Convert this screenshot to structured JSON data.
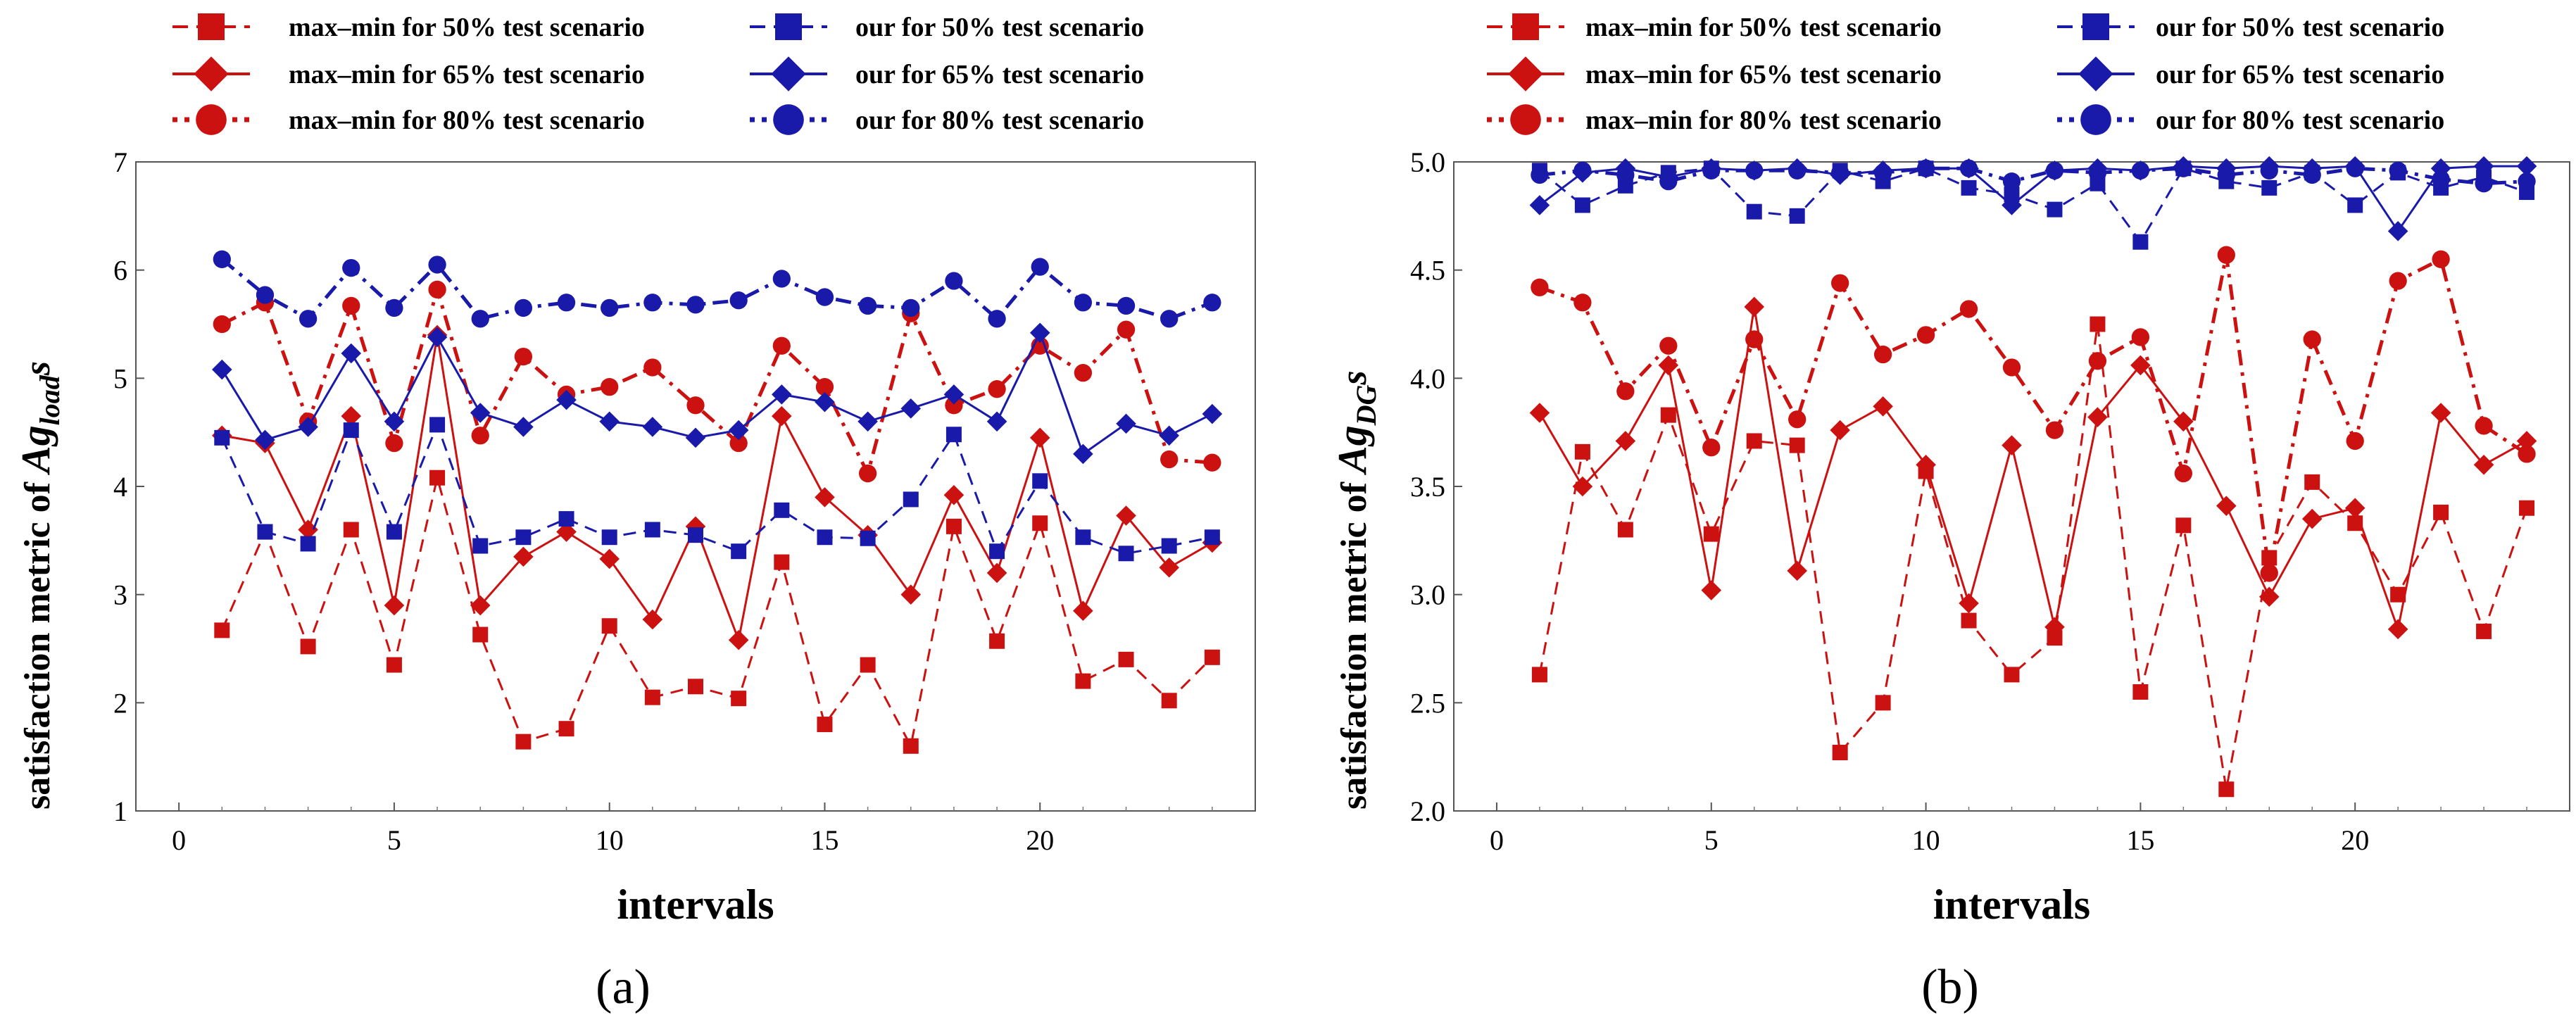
{
  "chart_data": [
    {
      "type": "line",
      "caption": "(a)",
      "xlabel": "intervals",
      "ylabel_prefix": "satisfaction  metric of ",
      "ylabel_symbol": "Ag",
      "ylabel_subscript": "load",
      "ylabel_suffix": "s",
      "xlim": [
        -1,
        25
      ],
      "ylim": [
        1,
        7
      ],
      "xticks": [
        0,
        5,
        10,
        15,
        20
      ],
      "yticks": [
        1,
        2,
        3,
        4,
        5,
        6,
        7
      ],
      "x": [
        1,
        2,
        3,
        4,
        5,
        6,
        7,
        8,
        9,
        10,
        11,
        12,
        13,
        14,
        15,
        16,
        17,
        18,
        19,
        20,
        21,
        22,
        23,
        24
      ],
      "series": [
        {
          "name": "max–min for 50% test scenario",
          "color": "#cc1111",
          "marker": "square",
          "dash": "dashed",
          "values": [
            2.67,
            3.58,
            2.52,
            3.6,
            2.35,
            4.08,
            2.63,
            1.64,
            1.76,
            2.71,
            2.05,
            2.15,
            2.04,
            3.3,
            1.8,
            2.35,
            1.6,
            3.63,
            2.57,
            3.66,
            2.2,
            2.4,
            2.02,
            2.42
          ]
        },
        {
          "name": "max–min for 65% test scenario",
          "color": "#cc1111",
          "marker": "diamond",
          "dash": "solid",
          "values": [
            4.47,
            4.4,
            3.6,
            4.65,
            2.9,
            5.4,
            2.9,
            3.35,
            3.58,
            3.33,
            2.77,
            3.63,
            2.58,
            4.65,
            3.9,
            3.55,
            3.0,
            3.92,
            3.2,
            4.45,
            2.85,
            3.73,
            3.25,
            3.48
          ]
        },
        {
          "name": "max–min for 80% test scenario",
          "color": "#cc1111",
          "marker": "circle",
          "dash": "dashdot",
          "values": [
            5.5,
            5.7,
            4.6,
            5.67,
            4.4,
            5.82,
            4.47,
            5.2,
            4.85,
            4.92,
            5.1,
            4.75,
            4.4,
            5.3,
            4.92,
            4.12,
            5.6,
            4.75,
            4.9,
            5.3,
            5.05,
            5.45,
            4.25,
            4.22
          ]
        },
        {
          "name": "our for 50% test scenario",
          "color": "#1a1aaa",
          "marker": "square",
          "dash": "dashed",
          "values": [
            4.45,
            3.58,
            3.47,
            4.52,
            3.58,
            4.57,
            3.45,
            3.53,
            3.7,
            3.53,
            3.6,
            3.55,
            3.4,
            3.78,
            3.53,
            3.52,
            3.88,
            4.48,
            3.4,
            4.05,
            3.53,
            3.38,
            3.45,
            3.53
          ]
        },
        {
          "name": "our for 65% test scenario",
          "color": "#1a1aaa",
          "marker": "diamond",
          "dash": "solid",
          "values": [
            5.08,
            4.43,
            4.55,
            5.23,
            4.6,
            5.38,
            4.68,
            4.55,
            4.8,
            4.6,
            4.55,
            4.45,
            4.52,
            4.85,
            4.78,
            4.6,
            4.72,
            4.85,
            4.6,
            5.42,
            4.3,
            4.58,
            4.47,
            4.67
          ]
        },
        {
          "name": "our for 80% test scenario",
          "color": "#1a1aaa",
          "marker": "circle",
          "dash": "dashdot",
          "values": [
            6.1,
            5.77,
            5.55,
            6.02,
            5.65,
            6.05,
            5.55,
            5.65,
            5.7,
            5.65,
            5.7,
            5.68,
            5.72,
            5.92,
            5.75,
            5.67,
            5.65,
            5.9,
            5.55,
            6.03,
            5.7,
            5.67,
            5.55,
            5.7
          ]
        }
      ]
    },
    {
      "type": "line",
      "caption": "(b)",
      "xlabel": "intervals",
      "ylabel_prefix": "satisfaction  metric of ",
      "ylabel_symbol": "Ag",
      "ylabel_subscript": "DG",
      "ylabel_suffix": "s",
      "xlim": [
        -1,
        25
      ],
      "ylim": [
        2.0,
        5.0
      ],
      "xticks": [
        0,
        5,
        10,
        15,
        20
      ],
      "yticks": [
        "2.0",
        "2.5",
        "3.0",
        "3.5",
        "4.0",
        "4.5",
        "5.0"
      ],
      "x": [
        1,
        2,
        3,
        4,
        5,
        6,
        7,
        8,
        9,
        10,
        11,
        12,
        13,
        14,
        15,
        16,
        17,
        18,
        19,
        20,
        21,
        22,
        23,
        24
      ],
      "series": [
        {
          "name": "max–min for 50% test scenario",
          "color": "#cc1111",
          "marker": "square",
          "dash": "dashed",
          "values": [
            2.63,
            3.66,
            3.3,
            3.83,
            3.28,
            3.71,
            3.69,
            2.27,
            2.5,
            3.57,
            2.88,
            2.63,
            2.8,
            4.25,
            2.55,
            3.32,
            2.1,
            3.17,
            3.52,
            3.33,
            3.0,
            3.38,
            2.83,
            3.4
          ]
        },
        {
          "name": "max–min for 65% test scenario",
          "color": "#cc1111",
          "marker": "diamond",
          "dash": "solid",
          "values": [
            3.84,
            3.5,
            3.71,
            4.06,
            3.02,
            4.33,
            3.11,
            3.76,
            3.87,
            3.6,
            2.96,
            3.69,
            2.85,
            3.82,
            4.06,
            3.8,
            3.41,
            2.99,
            3.35,
            3.4,
            2.84,
            3.84,
            3.6,
            3.71
          ]
        },
        {
          "name": "max–min for 80% test scenario",
          "color": "#cc1111",
          "marker": "circle",
          "dash": "dashdot",
          "values": [
            4.42,
            4.35,
            3.94,
            4.15,
            3.68,
            4.18,
            3.81,
            4.44,
            4.11,
            4.2,
            4.32,
            4.05,
            3.76,
            4.08,
            4.19,
            3.56,
            4.57,
            3.1,
            4.18,
            3.71,
            4.45,
            4.55,
            3.78,
            3.65
          ]
        },
        {
          "name": "our for 50% test scenario",
          "color": "#1a1aaa",
          "marker": "square",
          "dash": "dashed",
          "values": [
            4.96,
            4.8,
            4.89,
            4.95,
            4.97,
            4.77,
            4.75,
            4.96,
            4.91,
            4.97,
            4.88,
            4.85,
            4.78,
            4.9,
            4.63,
            4.97,
            4.91,
            4.88,
            4.95,
            4.8,
            4.95,
            4.88,
            4.93,
            4.86
          ]
        },
        {
          "name": "our for 65% test scenario",
          "color": "#1a1aaa",
          "marker": "diamond",
          "dash": "solid",
          "values": [
            4.8,
            4.95,
            4.97,
            4.93,
            4.97,
            4.96,
            4.97,
            4.94,
            4.96,
            4.97,
            4.97,
            4.8,
            4.96,
            4.97,
            4.96,
            4.98,
            4.97,
            4.98,
            4.97,
            4.98,
            4.68,
            4.97,
            4.98,
            4.98
          ]
        },
        {
          "name": "our for 80% test scenario",
          "color": "#1a1aaa",
          "marker": "circle",
          "dash": "dashdot",
          "values": [
            4.94,
            4.96,
            4.94,
            4.91,
            4.96,
            4.96,
            4.96,
            4.95,
            4.95,
            4.97,
            4.97,
            4.91,
            4.96,
            4.95,
            4.96,
            4.97,
            4.94,
            4.96,
            4.94,
            4.97,
            4.96,
            4.92,
            4.9,
            4.91
          ]
        }
      ]
    }
  ]
}
